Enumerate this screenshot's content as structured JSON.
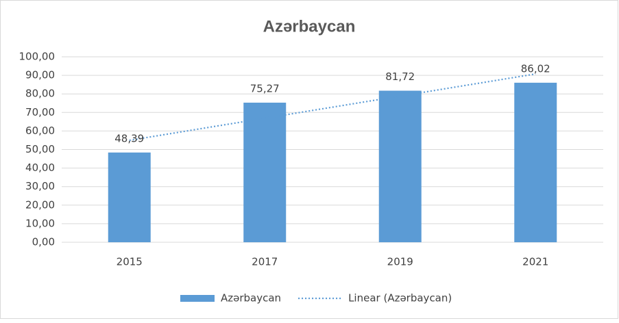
{
  "chart_data": {
    "type": "bar",
    "title": "Azərbaycan",
    "categories": [
      "2015",
      "2017",
      "2019",
      "2021"
    ],
    "series": [
      {
        "name": "Azərbaycan",
        "color": "#5b9bd5",
        "values": [
          48.39,
          75.27,
          81.72,
          86.02
        ],
        "value_labels": [
          "48,39",
          "75,27",
          "81,72",
          "86,02"
        ]
      },
      {
        "name": "Linear (Azərbaycan)",
        "color": "#5b9bd5",
        "type": "line",
        "style": "dotted",
        "values": [
          54.95,
          66.88,
          78.82,
          90.75
        ]
      }
    ],
    "ylim": [
      0,
      100
    ],
    "yticks": [
      {
        "value": 0,
        "label": "0,00"
      },
      {
        "value": 10,
        "label": "10,00"
      },
      {
        "value": 20,
        "label": "20,00"
      },
      {
        "value": 30,
        "label": "30,00"
      },
      {
        "value": 40,
        "label": "40,00"
      },
      {
        "value": 50,
        "label": "50,00"
      },
      {
        "value": 60,
        "label": "60,00"
      },
      {
        "value": 70,
        "label": "70,00"
      },
      {
        "value": 80,
        "label": "80,00"
      },
      {
        "value": 90,
        "label": "90,00"
      },
      {
        "value": 100,
        "label": "100,00"
      }
    ],
    "grid": true,
    "legend": "bottom"
  }
}
